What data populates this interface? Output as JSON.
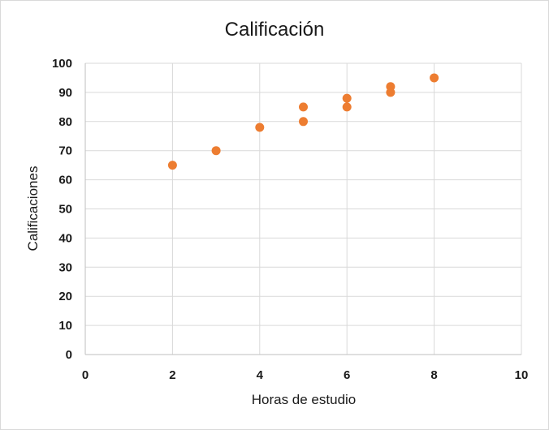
{
  "chart_data": {
    "type": "scatter",
    "title": "Calificación",
    "xlabel": "Horas de estudio",
    "ylabel": "Calificaciones",
    "xlim": [
      0,
      10
    ],
    "ylim": [
      0,
      100
    ],
    "xticks": [
      0,
      2,
      4,
      6,
      8,
      10
    ],
    "yticks": [
      0,
      10,
      20,
      30,
      40,
      50,
      60,
      70,
      80,
      90,
      100
    ],
    "grid": true,
    "legend": "none",
    "marker_color": "#ed7d31",
    "series": [
      {
        "points": [
          {
            "x": 2,
            "y": 65
          },
          {
            "x": 3,
            "y": 70
          },
          {
            "x": 4,
            "y": 78
          },
          {
            "x": 5,
            "y": 85
          },
          {
            "x": 5,
            "y": 80
          },
          {
            "x": 6,
            "y": 88
          },
          {
            "x": 6,
            "y": 85
          },
          {
            "x": 7,
            "y": 92
          },
          {
            "x": 7,
            "y": 90
          },
          {
            "x": 8,
            "y": 95
          }
        ]
      }
    ]
  }
}
